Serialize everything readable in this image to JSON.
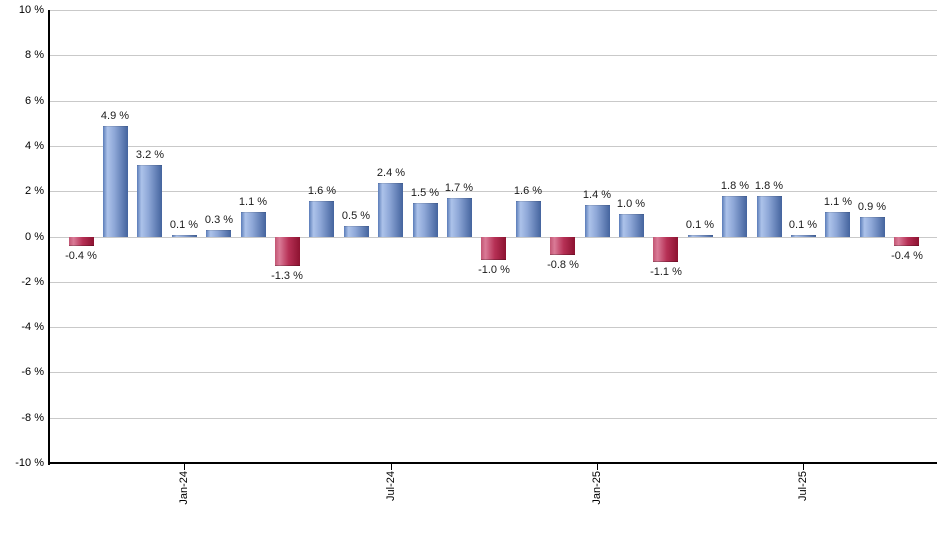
{
  "chart_data": {
    "type": "bar",
    "title": "",
    "xlabel": "",
    "ylabel": "",
    "ylim": [
      -10,
      10
    ],
    "grid": true,
    "legend": "none",
    "value_label_format": "0.0 %",
    "colors": {
      "positive_bar": "#6e8ec9",
      "negative_bar": "#b02347",
      "positive_gradient": [
        "#5b7cb8",
        "#adc3ea",
        "#8fa8d8",
        "#44649e"
      ],
      "negative_gradient": [
        "#c25573",
        "#da7b97",
        "#b63055",
        "#8c1230"
      ],
      "gridline": "#c9c9c9",
      "axis": "#000000",
      "label_text": "#1a1a1a",
      "background": "#ffffff"
    },
    "y_axis": {
      "ticks": [
        {
          "value": 10,
          "label": "10 %"
        },
        {
          "value": 8,
          "label": "8 %"
        },
        {
          "value": 6,
          "label": "6 %"
        },
        {
          "value": 4,
          "label": "4 %"
        },
        {
          "value": 2,
          "label": "2 %"
        },
        {
          "value": 0,
          "label": "0 %"
        },
        {
          "value": -2,
          "label": "-2 %"
        },
        {
          "value": -4,
          "label": "-4 %"
        },
        {
          "value": -6,
          "label": "-6 %"
        },
        {
          "value": -8,
          "label": "-8 %"
        },
        {
          "value": -10,
          "label": "-10 %"
        }
      ]
    },
    "x_axis": {
      "ticks": [
        {
          "label": "Jan-24",
          "bar_index": 3
        },
        {
          "label": "Jul-24",
          "bar_index": 9
        },
        {
          "label": "Jan-25",
          "bar_index": 15
        },
        {
          "label": "Jul-25",
          "bar_index": 21
        }
      ]
    },
    "bars": [
      {
        "label": "-0.4 %",
        "value": -0.4
      },
      {
        "label": "4.9 %",
        "value": 4.9
      },
      {
        "label": "3.2 %",
        "value": 3.2
      },
      {
        "label": "0.1 %",
        "value": 0.1
      },
      {
        "label": "0.3 %",
        "value": 0.3
      },
      {
        "label": "1.1 %",
        "value": 1.1
      },
      {
        "label": "-1.3 %",
        "value": -1.3
      },
      {
        "label": "1.6 %",
        "value": 1.6
      },
      {
        "label": "0.5 %",
        "value": 0.5
      },
      {
        "label": "2.4 %",
        "value": 2.4
      },
      {
        "label": "1.5 %",
        "value": 1.5
      },
      {
        "label": "1.7 %",
        "value": 1.7
      },
      {
        "label": "-1.0 %",
        "value": -1.0
      },
      {
        "label": "1.6 %",
        "value": 1.6
      },
      {
        "label": "-0.8 %",
        "value": -0.8
      },
      {
        "label": "1.4 %",
        "value": 1.4
      },
      {
        "label": "1.0 %",
        "value": 1.0
      },
      {
        "label": "-1.1 %",
        "value": -1.1
      },
      {
        "label": "0.1 %",
        "value": 0.1
      },
      {
        "label": "1.8 %",
        "value": 1.8
      },
      {
        "label": "1.8 %",
        "value": 1.8
      },
      {
        "label": "0.1 %",
        "value": 0.1
      },
      {
        "label": "1.1 %",
        "value": 1.1
      },
      {
        "label": "0.9 %",
        "value": 0.9
      },
      {
        "label": "-0.4 %",
        "value": -0.4
      }
    ]
  }
}
